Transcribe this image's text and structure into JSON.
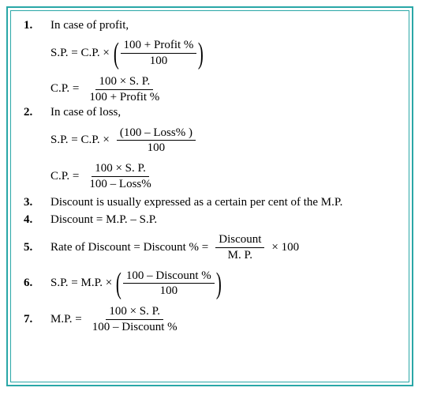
{
  "colors": {
    "frame": "#2aa7a7",
    "text": "#000000",
    "bg": "#ffffff"
  },
  "font": {
    "family": "Times New Roman",
    "size_pt": 11
  },
  "items": [
    {
      "n": "1.",
      "lead": "In case of profit,"
    },
    {
      "n": "2.",
      "lead": "In case of loss,"
    },
    {
      "n": "3.",
      "text": "Discount is usually expressed as a certain per cent of  the M.P."
    },
    {
      "n": "4.",
      "text": "Discount = M.P. – S.P."
    },
    {
      "n": "5.",
      "lhs": "Rate of  Discount = Discount % =",
      "frac_top": "Discount",
      "frac_bot": "M. P.",
      "suffix": "× 100"
    },
    {
      "n": "6.",
      "lhs": "S.P. = M.P. ×",
      "parend_top": "100 – Discount %",
      "parend_bot": "100"
    },
    {
      "n": "7.",
      "lhs": "M.P.  =",
      "frac_top": "100 × S. P.",
      "frac_bot": "100 – Discount %"
    }
  ],
  "eq": {
    "sp_profit": {
      "lhs": "S.P.  = C.P. ×",
      "top": "100 + Profit %",
      "bot": "100"
    },
    "cp_profit": {
      "lhs": "C.P.  =",
      "top": "100 × S. P.",
      "bot": "100 + Profit %"
    },
    "sp_loss": {
      "lhs": "S.P. =  C.P. ×",
      "top": "(100 – Loss% )",
      "bot": "100"
    },
    "cp_loss": {
      "lhs": "C.P.  =",
      "top": "100 × S. P.",
      "bot": "100 – Loss%"
    }
  }
}
